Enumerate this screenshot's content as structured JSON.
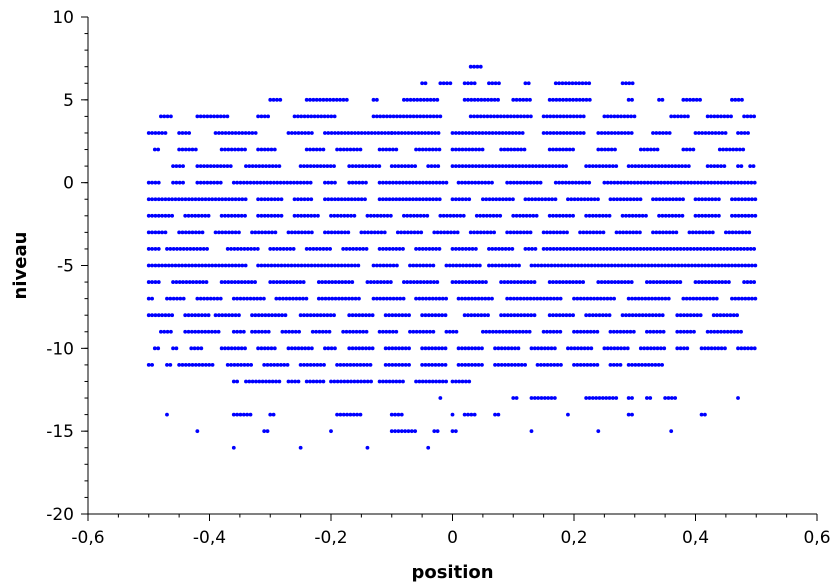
{
  "chart_data": {
    "type": "scatter",
    "xlabel": "position",
    "ylabel": "niveau",
    "xlim": [
      -0.6,
      0.6
    ],
    "ylim": [
      -20,
      10
    ],
    "xticks": [
      -0.6,
      -0.4,
      -0.2,
      0,
      0.2,
      0.4,
      0.6
    ],
    "xtick_labels": [
      "-0,6",
      "-0,4",
      "-0,2",
      "0",
      "0,2",
      "0,4",
      "0,6"
    ],
    "yticks": [
      10,
      5,
      0,
      -5,
      -10,
      -15,
      -20
    ],
    "ytick_labels": [
      "10",
      "5",
      "0",
      "-5",
      "-10",
      "-15",
      "-20"
    ],
    "grid": false,
    "marker_color": "#0000ff",
    "levels": [
      {
        "y": 7,
        "segments": [
          [
            0.03,
            0.05
          ]
        ]
      },
      {
        "y": 6,
        "segments": [
          [
            -0.05,
            -0.04
          ],
          [
            -0.02,
            0.0
          ],
          [
            0.02,
            0.04
          ],
          [
            0.06,
            0.08
          ],
          [
            0.12,
            0.13
          ],
          [
            0.17,
            0.23
          ],
          [
            0.28,
            0.3
          ]
        ]
      },
      {
        "y": 5,
        "segments": [
          [
            -0.3,
            -0.28
          ],
          [
            -0.24,
            -0.17
          ],
          [
            -0.13,
            -0.12
          ],
          [
            -0.08,
            -0.02
          ],
          [
            0.02,
            0.08
          ],
          [
            0.1,
            0.13
          ],
          [
            0.16,
            0.23
          ],
          [
            0.29,
            0.3
          ],
          [
            0.34,
            0.35
          ],
          [
            0.38,
            0.41
          ],
          [
            0.46,
            0.48
          ]
        ]
      },
      {
        "y": 4,
        "segments": [
          [
            -0.48,
            -0.46
          ],
          [
            -0.42,
            -0.37
          ],
          [
            -0.32,
            -0.3
          ],
          [
            -0.26,
            -0.19
          ],
          [
            -0.13,
            -0.02
          ],
          [
            0.03,
            0.13
          ],
          [
            0.15,
            0.22
          ],
          [
            0.25,
            0.3
          ],
          [
            0.36,
            0.39
          ],
          [
            0.42,
            0.46
          ],
          [
            0.48,
            0.5
          ]
        ]
      },
      {
        "y": 3,
        "segments": [
          [
            -0.5,
            -0.47
          ],
          [
            -0.45,
            -0.43
          ],
          [
            -0.39,
            -0.32
          ],
          [
            -0.27,
            -0.23
          ],
          [
            -0.21,
            -0.1
          ],
          [
            -0.1,
            -0.02
          ],
          [
            0.0,
            0.12
          ],
          [
            0.15,
            0.22
          ],
          [
            0.24,
            0.3
          ],
          [
            0.33,
            0.36
          ],
          [
            0.4,
            0.45
          ],
          [
            0.47,
            0.49
          ]
        ]
      },
      {
        "y": 2,
        "segments": [
          [
            -0.49,
            -0.48
          ],
          [
            -0.45,
            -0.42
          ],
          [
            -0.38,
            -0.34
          ],
          [
            -0.32,
            -0.29
          ],
          [
            -0.24,
            -0.21
          ],
          [
            -0.19,
            -0.15
          ],
          [
            -0.12,
            -0.09
          ],
          [
            -0.06,
            -0.02
          ],
          [
            0.0,
            0.05
          ],
          [
            0.08,
            0.12
          ],
          [
            0.16,
            0.2
          ],
          [
            0.24,
            0.27
          ],
          [
            0.31,
            0.34
          ],
          [
            0.38,
            0.4
          ],
          [
            0.44,
            0.48
          ]
        ]
      },
      {
        "y": 1,
        "segments": [
          [
            -0.46,
            -0.44
          ],
          [
            -0.42,
            -0.36
          ],
          [
            -0.34,
            -0.28
          ],
          [
            -0.25,
            -0.19
          ],
          [
            -0.17,
            -0.12
          ],
          [
            -0.1,
            -0.06
          ],
          [
            -0.04,
            -0.02
          ],
          [
            0.0,
            0.19
          ],
          [
            0.22,
            0.27
          ],
          [
            0.29,
            0.39
          ],
          [
            0.42,
            0.45
          ],
          [
            0.47,
            0.48
          ],
          [
            0.49,
            0.5
          ]
        ]
      },
      {
        "y": 0,
        "segments": [
          [
            -0.5,
            -0.48
          ],
          [
            -0.46,
            -0.44
          ],
          [
            -0.42,
            -0.38
          ],
          [
            -0.36,
            -0.23
          ],
          [
            -0.21,
            -0.19
          ],
          [
            -0.17,
            -0.14
          ],
          [
            -0.12,
            -0.01
          ],
          [
            0.01,
            0.07
          ],
          [
            0.09,
            0.15
          ],
          [
            0.17,
            0.23
          ],
          [
            0.25,
            0.5
          ]
        ]
      },
      {
        "y": -1,
        "segments": [
          [
            -0.5,
            -0.34
          ],
          [
            -0.32,
            -0.28
          ],
          [
            -0.26,
            -0.23
          ],
          [
            -0.21,
            -0.14
          ],
          [
            -0.12,
            -0.02
          ],
          [
            0.0,
            0.03
          ],
          [
            0.05,
            0.1
          ],
          [
            0.12,
            0.17
          ],
          [
            0.19,
            0.24
          ],
          [
            0.26,
            0.31
          ],
          [
            0.33,
            0.38
          ],
          [
            0.4,
            0.44
          ],
          [
            0.46,
            0.5
          ]
        ]
      },
      {
        "y": -2,
        "segments": [
          [
            -0.5,
            -0.46
          ],
          [
            -0.44,
            -0.4
          ],
          [
            -0.38,
            -0.34
          ],
          [
            -0.32,
            -0.28
          ],
          [
            -0.26,
            -0.22
          ],
          [
            -0.2,
            -0.16
          ],
          [
            -0.14,
            -0.1
          ],
          [
            -0.08,
            -0.04
          ],
          [
            -0.02,
            0.02
          ],
          [
            0.04,
            0.08
          ],
          [
            0.1,
            0.14
          ],
          [
            0.16,
            0.2
          ],
          [
            0.22,
            0.26
          ],
          [
            0.28,
            0.32
          ],
          [
            0.34,
            0.38
          ],
          [
            0.4,
            0.44
          ],
          [
            0.46,
            0.5
          ]
        ]
      },
      {
        "y": -3,
        "segments": [
          [
            -0.5,
            -0.47
          ],
          [
            -0.45,
            -0.41
          ],
          [
            -0.39,
            -0.35
          ],
          [
            -0.33,
            -0.29
          ],
          [
            -0.27,
            -0.23
          ],
          [
            -0.21,
            -0.17
          ],
          [
            -0.15,
            -0.11
          ],
          [
            -0.09,
            -0.05
          ],
          [
            -0.03,
            0.01
          ],
          [
            0.03,
            0.07
          ],
          [
            0.09,
            0.13
          ],
          [
            0.15,
            0.19
          ],
          [
            0.21,
            0.25
          ],
          [
            0.27,
            0.31
          ],
          [
            0.33,
            0.37
          ],
          [
            0.39,
            0.43
          ],
          [
            0.45,
            0.49
          ]
        ]
      },
      {
        "y": -4,
        "segments": [
          [
            -0.5,
            -0.48
          ],
          [
            -0.47,
            -0.4
          ],
          [
            -0.37,
            -0.32
          ],
          [
            -0.3,
            -0.26
          ],
          [
            -0.24,
            -0.2
          ],
          [
            -0.18,
            -0.14
          ],
          [
            -0.12,
            -0.08
          ],
          [
            -0.06,
            -0.02
          ],
          [
            0.0,
            0.04
          ],
          [
            0.06,
            0.1
          ],
          [
            0.12,
            0.14
          ],
          [
            0.15,
            0.5
          ]
        ]
      },
      {
        "y": -5,
        "segments": [
          [
            -0.5,
            -0.34
          ],
          [
            -0.32,
            -0.15
          ],
          [
            -0.13,
            -0.09
          ],
          [
            -0.07,
            -0.03
          ],
          [
            -0.01,
            0.05
          ],
          [
            0.06,
            0.11
          ],
          [
            0.13,
            0.5
          ]
        ]
      },
      {
        "y": -6,
        "segments": [
          [
            -0.5,
            -0.48
          ],
          [
            -0.46,
            -0.4
          ],
          [
            -0.38,
            -0.32
          ],
          [
            -0.3,
            -0.24
          ],
          [
            -0.22,
            -0.16
          ],
          [
            -0.14,
            -0.1
          ],
          [
            -0.08,
            -0.02
          ],
          [
            0.0,
            0.06
          ],
          [
            0.08,
            0.14
          ],
          [
            0.16,
            0.22
          ],
          [
            0.24,
            0.3
          ],
          [
            0.32,
            0.38
          ],
          [
            0.4,
            0.46
          ],
          [
            0.48,
            0.5
          ]
        ]
      },
      {
        "y": -7,
        "segments": [
          [
            -0.5,
            -0.49
          ],
          [
            -0.47,
            -0.44
          ],
          [
            -0.42,
            -0.38
          ],
          [
            -0.36,
            -0.31
          ],
          [
            -0.29,
            -0.24
          ],
          [
            -0.22,
            -0.15
          ],
          [
            -0.13,
            -0.08
          ],
          [
            -0.06,
            -0.01
          ],
          [
            0.01,
            0.07
          ],
          [
            0.09,
            0.18
          ],
          [
            0.2,
            0.27
          ],
          [
            0.29,
            0.36
          ],
          [
            0.38,
            0.44
          ],
          [
            0.46,
            0.5
          ]
        ]
      },
      {
        "y": -8,
        "segments": [
          [
            -0.5,
            -0.46
          ],
          [
            -0.44,
            -0.4
          ],
          [
            -0.39,
            -0.35
          ],
          [
            -0.33,
            -0.27
          ],
          [
            -0.25,
            -0.19
          ],
          [
            -0.17,
            -0.13
          ],
          [
            -0.11,
            -0.07
          ],
          [
            -0.05,
            -0.01
          ],
          [
            0.02,
            0.06
          ],
          [
            0.08,
            0.14
          ],
          [
            0.16,
            0.2
          ],
          [
            0.22,
            0.26
          ],
          [
            0.28,
            0.35
          ],
          [
            0.37,
            0.41
          ],
          [
            0.43,
            0.47
          ]
        ]
      },
      {
        "y": -9,
        "segments": [
          [
            -0.48,
            -0.46
          ],
          [
            -0.44,
            -0.38
          ],
          [
            -0.36,
            -0.34
          ],
          [
            -0.33,
            -0.3
          ],
          [
            -0.28,
            -0.25
          ],
          [
            -0.23,
            -0.2
          ],
          [
            -0.18,
            -0.14
          ],
          [
            -0.12,
            -0.09
          ],
          [
            -0.07,
            -0.03
          ],
          [
            -0.01,
            0.01
          ],
          [
            0.05,
            0.13
          ],
          [
            0.15,
            0.18
          ],
          [
            0.2,
            0.24
          ],
          [
            0.26,
            0.3
          ],
          [
            0.32,
            0.35
          ],
          [
            0.37,
            0.4
          ],
          [
            0.42,
            0.48
          ]
        ]
      },
      {
        "y": -10,
        "segments": [
          [
            -0.49,
            -0.48
          ],
          [
            -0.46,
            -0.45
          ],
          [
            -0.43,
            -0.41
          ],
          [
            -0.38,
            -0.34
          ],
          [
            -0.32,
            -0.29
          ],
          [
            -0.27,
            -0.23
          ],
          [
            -0.21,
            -0.19
          ],
          [
            -0.17,
            -0.13
          ],
          [
            -0.11,
            -0.07
          ],
          [
            -0.05,
            -0.01
          ],
          [
            0.01,
            0.05
          ],
          [
            0.07,
            0.11
          ],
          [
            0.13,
            0.17
          ],
          [
            0.19,
            0.23
          ],
          [
            0.25,
            0.29
          ],
          [
            0.31,
            0.35
          ],
          [
            0.37,
            0.39
          ],
          [
            0.41,
            0.45
          ],
          [
            0.47,
            0.5
          ]
        ]
      },
      {
        "y": -11,
        "segments": [
          [
            -0.5,
            -0.49
          ],
          [
            -0.47,
            -0.46
          ],
          [
            -0.45,
            -0.39
          ],
          [
            -0.37,
            -0.33
          ],
          [
            -0.31,
            -0.27
          ],
          [
            -0.25,
            -0.21
          ],
          [
            -0.19,
            -0.13
          ],
          [
            -0.11,
            -0.07
          ],
          [
            -0.05,
            -0.01
          ],
          [
            0.01,
            0.05
          ],
          [
            0.07,
            0.12
          ],
          [
            0.14,
            0.18
          ],
          [
            0.2,
            0.24
          ],
          [
            0.26,
            0.28
          ],
          [
            0.29,
            0.35
          ]
        ]
      },
      {
        "y": -12,
        "segments": [
          [
            -0.36,
            -0.35
          ],
          [
            -0.34,
            -0.28
          ],
          [
            -0.27,
            -0.25
          ],
          [
            -0.24,
            -0.21
          ],
          [
            -0.2,
            -0.13
          ],
          [
            -0.12,
            -0.08
          ],
          [
            -0.06,
            -0.01
          ],
          [
            0.0,
            0.03
          ]
        ]
      },
      {
        "y": -13,
        "segments": [
          [
            -0.02,
            -0.02
          ],
          [
            0.1,
            0.11
          ],
          [
            0.13,
            0.17
          ],
          [
            0.22,
            0.27
          ],
          [
            0.29,
            0.3
          ],
          [
            0.32,
            0.33
          ],
          [
            0.35,
            0.37
          ],
          [
            0.47,
            0.47
          ]
        ]
      },
      {
        "y": -14,
        "segments": [
          [
            -0.47,
            -0.47
          ],
          [
            -0.36,
            -0.33
          ],
          [
            -0.3,
            -0.29
          ],
          [
            -0.19,
            -0.15
          ],
          [
            -0.1,
            -0.08
          ],
          [
            0.0,
            0.0
          ],
          [
            0.02,
            0.04
          ],
          [
            0.07,
            0.08
          ],
          [
            0.19,
            0.19
          ],
          [
            0.29,
            0.3
          ],
          [
            0.41,
            0.42
          ]
        ]
      },
      {
        "y": -15,
        "segments": [
          [
            -0.42,
            -0.42
          ],
          [
            -0.31,
            -0.3
          ],
          [
            -0.2,
            -0.2
          ],
          [
            -0.1,
            -0.06
          ],
          [
            -0.03,
            -0.02
          ],
          [
            0.0,
            0.01
          ],
          [
            0.13,
            0.13
          ],
          [
            0.24,
            0.24
          ],
          [
            0.36,
            0.36
          ]
        ]
      },
      {
        "y": -16,
        "segments": [
          [
            -0.36,
            -0.36
          ],
          [
            -0.25,
            -0.25
          ],
          [
            -0.14,
            -0.14
          ],
          [
            -0.04,
            -0.04
          ]
        ]
      }
    ]
  }
}
